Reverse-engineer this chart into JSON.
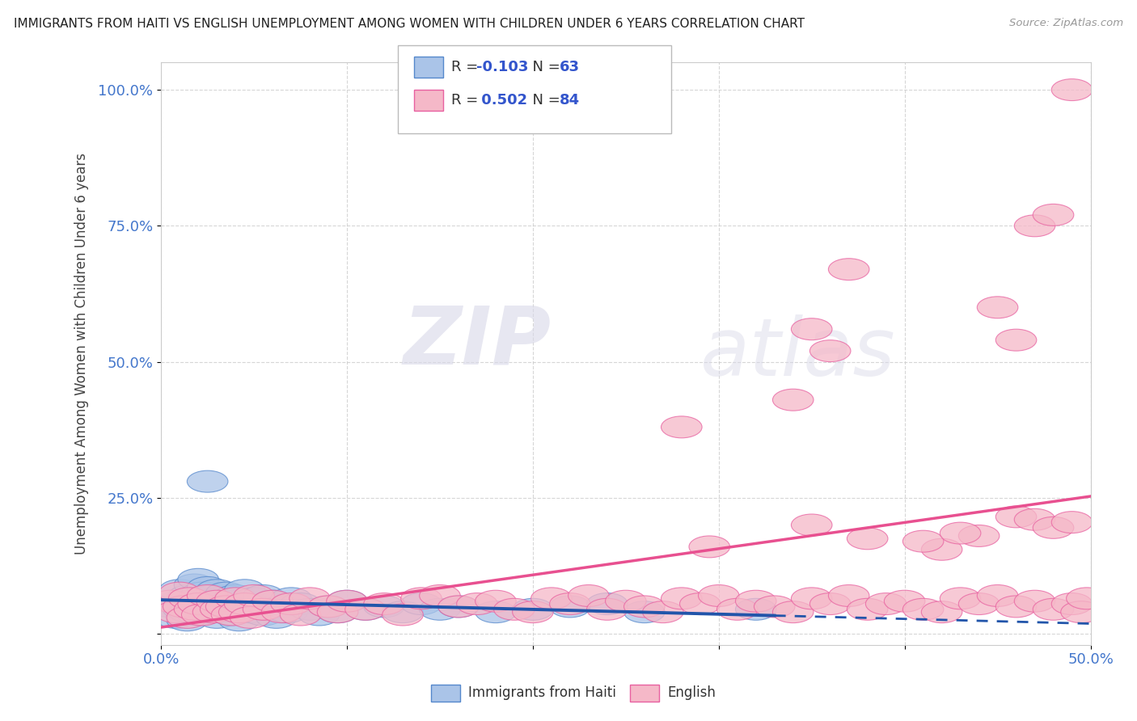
{
  "title": "IMMIGRANTS FROM HAITI VS ENGLISH UNEMPLOYMENT AMONG WOMEN WITH CHILDREN UNDER 6 YEARS CORRELATION CHART",
  "source": "Source: ZipAtlas.com",
  "ylabel": "Unemployment Among Women with Children Under 6 years",
  "xlim": [
    0.0,
    0.5
  ],
  "ylim": [
    -0.02,
    1.05
  ],
  "xticks": [
    0.0,
    0.1,
    0.2,
    0.3,
    0.4,
    0.5
  ],
  "xticklabels": [
    "0.0%",
    "",
    "",
    "",
    "",
    "50.0%"
  ],
  "yticks": [
    0.0,
    0.25,
    0.5,
    0.75,
    1.0
  ],
  "yticklabels": [
    "",
    "25.0%",
    "50.0%",
    "75.0%",
    "100.0%"
  ],
  "legend_r_blue": "-0.103",
  "legend_n_blue": "63",
  "legend_r_pink": "0.502",
  "legend_n_pink": "84",
  "blue_fill": "#aac4e8",
  "pink_fill": "#f5b8c8",
  "blue_edge": "#5588cc",
  "pink_edge": "#e860a0",
  "blue_line_color": "#2255aa",
  "pink_line_color": "#e85090",
  "watermark_zip": "ZIP",
  "watermark_atlas": "atlas",
  "background_color": "#ffffff",
  "blue_scatter_x": [
    0.005,
    0.008,
    0.01,
    0.01,
    0.012,
    0.014,
    0.015,
    0.015,
    0.018,
    0.018,
    0.02,
    0.02,
    0.02,
    0.022,
    0.022,
    0.025,
    0.025,
    0.025,
    0.028,
    0.028,
    0.03,
    0.03,
    0.03,
    0.032,
    0.032,
    0.035,
    0.035,
    0.038,
    0.038,
    0.04,
    0.04,
    0.042,
    0.045,
    0.045,
    0.048,
    0.05,
    0.052,
    0.055,
    0.055,
    0.058,
    0.06,
    0.062,
    0.065,
    0.068,
    0.07,
    0.075,
    0.08,
    0.085,
    0.09,
    0.095,
    0.1,
    0.11,
    0.12,
    0.13,
    0.14,
    0.15,
    0.16,
    0.18,
    0.2,
    0.22,
    0.24,
    0.26,
    0.32
  ],
  "blue_scatter_y": [
    0.05,
    0.03,
    0.06,
    0.08,
    0.045,
    0.025,
    0.07,
    0.04,
    0.055,
    0.09,
    0.035,
    0.065,
    0.1,
    0.05,
    0.075,
    0.04,
    0.06,
    0.085,
    0.045,
    0.07,
    0.03,
    0.055,
    0.08,
    0.04,
    0.065,
    0.05,
    0.075,
    0.035,
    0.06,
    0.045,
    0.07,
    0.025,
    0.055,
    0.08,
    0.04,
    0.065,
    0.05,
    0.035,
    0.07,
    0.045,
    0.06,
    0.03,
    0.05,
    0.04,
    0.065,
    0.055,
    0.045,
    0.035,
    0.05,
    0.04,
    0.06,
    0.045,
    0.05,
    0.04,
    0.055,
    0.045,
    0.05,
    0.04,
    0.045,
    0.05,
    0.055,
    0.04,
    0.045
  ],
  "blue_outlier_x": [
    0.025
  ],
  "blue_outlier_y": [
    0.28
  ],
  "pink_scatter_x": [
    0.005,
    0.008,
    0.01,
    0.012,
    0.014,
    0.015,
    0.018,
    0.02,
    0.022,
    0.025,
    0.028,
    0.03,
    0.032,
    0.035,
    0.038,
    0.04,
    0.042,
    0.045,
    0.048,
    0.05,
    0.055,
    0.06,
    0.065,
    0.07,
    0.075,
    0.08,
    0.09,
    0.095,
    0.1,
    0.11,
    0.12,
    0.13,
    0.14,
    0.15,
    0.16,
    0.17,
    0.18,
    0.19,
    0.2,
    0.21,
    0.22,
    0.23,
    0.24,
    0.25,
    0.26,
    0.27,
    0.28,
    0.29,
    0.3,
    0.31,
    0.32,
    0.33,
    0.34,
    0.35,
    0.36,
    0.37,
    0.38,
    0.39,
    0.4,
    0.41,
    0.42,
    0.43,
    0.44,
    0.45,
    0.46,
    0.47,
    0.48,
    0.49,
    0.495,
    0.498,
    0.35,
    0.38,
    0.42,
    0.44,
    0.46,
    0.47,
    0.48,
    0.49,
    0.41,
    0.43,
    0.36,
    0.34,
    0.28,
    0.295
  ],
  "pink_scatter_y": [
    0.06,
    0.04,
    0.075,
    0.05,
    0.03,
    0.065,
    0.045,
    0.055,
    0.035,
    0.07,
    0.04,
    0.06,
    0.045,
    0.05,
    0.035,
    0.065,
    0.04,
    0.055,
    0.03,
    0.07,
    0.045,
    0.06,
    0.04,
    0.055,
    0.035,
    0.065,
    0.05,
    0.04,
    0.06,
    0.045,
    0.055,
    0.035,
    0.065,
    0.07,
    0.05,
    0.055,
    0.06,
    0.045,
    0.04,
    0.065,
    0.055,
    0.07,
    0.045,
    0.06,
    0.05,
    0.04,
    0.065,
    0.055,
    0.07,
    0.045,
    0.06,
    0.05,
    0.04,
    0.065,
    0.055,
    0.07,
    0.045,
    0.055,
    0.06,
    0.045,
    0.04,
    0.065,
    0.055,
    0.07,
    0.05,
    0.06,
    0.045,
    0.055,
    0.04,
    0.065,
    0.2,
    0.175,
    0.155,
    0.18,
    0.215,
    0.21,
    0.195,
    0.205,
    0.17,
    0.185,
    0.52,
    0.43,
    0.38,
    0.16
  ],
  "pink_outlier_x": [
    0.49,
    0.47,
    0.48,
    0.37,
    0.35,
    0.45,
    0.46
  ],
  "pink_outlier_y": [
    1.0,
    0.75,
    0.77,
    0.67,
    0.56,
    0.6,
    0.54
  ]
}
